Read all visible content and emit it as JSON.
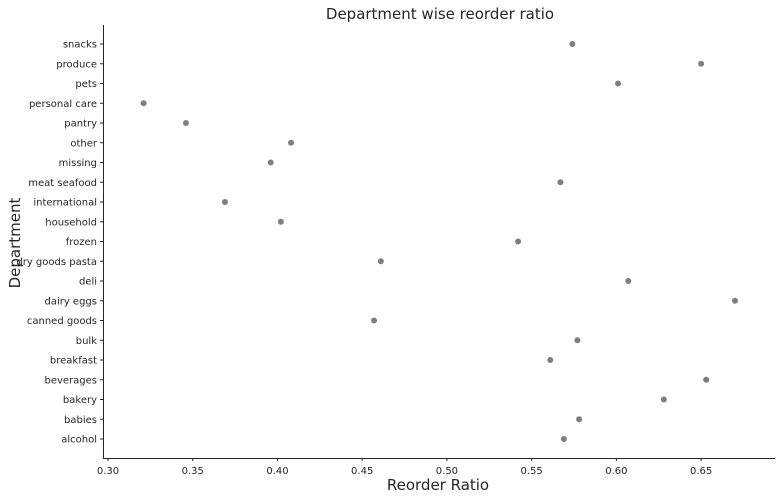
{
  "chart_data": {
    "type": "scatter",
    "title": "Department wise reorder ratio",
    "xlabel": "Reorder Ratio",
    "ylabel": "Department",
    "xlim": [
      0.3,
      0.695
    ],
    "xticks": [
      "0.30",
      "0.35",
      "0.40",
      "0.45",
      "0.50",
      "0.55",
      "0.60",
      "0.65"
    ],
    "grid": false,
    "point_color": "#7f7f7f",
    "categories": [
      "snacks",
      "produce",
      "pets",
      "personal care",
      "pantry",
      "other",
      "missing",
      "meat seafood",
      "international",
      "household",
      "frozen",
      "dry goods pasta",
      "deli",
      "dairy eggs",
      "canned goods",
      "bulk",
      "breakfast",
      "beverages",
      "bakery",
      "babies",
      "alcohol"
    ],
    "values": [
      0.574,
      0.65,
      0.601,
      0.321,
      0.346,
      0.408,
      0.396,
      0.567,
      0.369,
      0.402,
      0.542,
      0.461,
      0.607,
      0.67,
      0.457,
      0.577,
      0.561,
      0.653,
      0.628,
      0.578,
      0.569
    ]
  }
}
